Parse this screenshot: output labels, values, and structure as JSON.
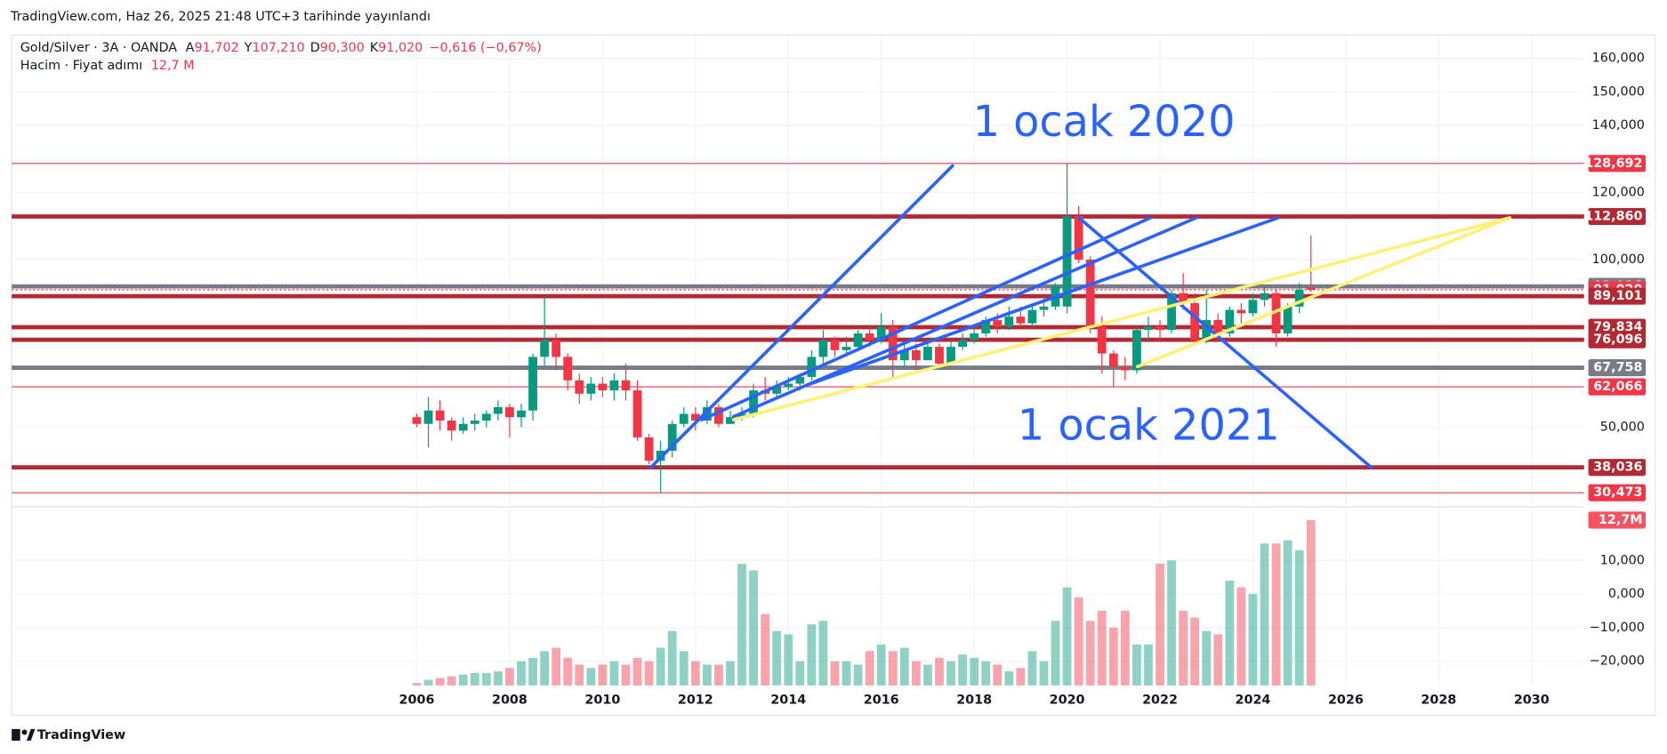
{
  "header": {
    "published": "TradingView.com, Haz 26, 2025 21:48 UTC+3 tarihinde yayınlandı",
    "symbol": "Gold/Silver · 3A · OANDA",
    "ohlc": [
      {
        "label": "A",
        "value": "91,702"
      },
      {
        "label": "Y",
        "value": "107,210"
      },
      {
        "label": "D",
        "value": "90,300"
      },
      {
        "label": "K",
        "value": "91,020"
      }
    ],
    "change": "−0,616 (−0,67%)",
    "volume_label": "Hacim · Fiyat adımı",
    "volume_value": "12,7 M"
  },
  "footer": {
    "brand": "TradingView"
  },
  "chart_data": {
    "type": "candlestick",
    "up_color": "#089981",
    "down_color": "#f23645",
    "x": [
      2006,
      2006.25,
      2006.5,
      2006.75,
      2007,
      2007.25,
      2007.5,
      2007.75,
      2008,
      2008.25,
      2008.5,
      2008.75,
      2009,
      2009.25,
      2009.5,
      2009.75,
      2010,
      2010.25,
      2010.5,
      2010.75,
      2011,
      2011.25,
      2011.5,
      2011.75,
      2012,
      2012.25,
      2012.5,
      2012.75,
      2013,
      2013.25,
      2013.5,
      2013.75,
      2014,
      2014.25,
      2014.5,
      2014.75,
      2015,
      2015.25,
      2015.5,
      2015.75,
      2016,
      2016.25,
      2016.5,
      2016.75,
      2017,
      2017.25,
      2017.5,
      2017.75,
      2018,
      2018.25,
      2018.5,
      2018.75,
      2019,
      2019.25,
      2019.5,
      2019.75,
      2020,
      2020.25,
      2020.5,
      2020.75,
      2021,
      2021.25,
      2021.5,
      2021.75,
      2022,
      2022.25,
      2022.5,
      2022.75,
      2023,
      2023.25,
      2023.5,
      2023.75,
      2024,
      2024.25,
      2024.5,
      2024.75,
      2025,
      2025.25
    ],
    "open": [
      53,
      51,
      55,
      52,
      49,
      51,
      52,
      54,
      56,
      53,
      55,
      71,
      76,
      71,
      64,
      60,
      63,
      61,
      64,
      61,
      47,
      40,
      43,
      51,
      54,
      52,
      56,
      51,
      53,
      54,
      61,
      60,
      62,
      63,
      65,
      71,
      76,
      73,
      74,
      78,
      76,
      80,
      70,
      73,
      70,
      74,
      69,
      74,
      76,
      78,
      82,
      80,
      83,
      81,
      85,
      86,
      86,
      113,
      100,
      80,
      72,
      68,
      67,
      79,
      80,
      79,
      90,
      87,
      76,
      82,
      78,
      85,
      84,
      88,
      90,
      78,
      86,
      91.702
    ],
    "high": [
      54,
      59,
      58,
      53,
      53,
      54,
      55,
      58,
      57,
      57,
      72,
      89,
      78,
      72,
      66,
      65,
      65,
      66,
      69,
      64,
      48,
      46,
      52,
      56,
      56,
      58,
      57,
      55,
      56,
      63,
      65,
      64,
      65,
      66,
      73,
      79,
      77,
      77,
      79,
      80,
      84,
      82,
      75,
      75,
      76,
      75,
      76,
      78,
      80,
      83,
      84,
      86,
      86,
      87,
      89,
      93,
      128.692,
      116,
      101,
      83,
      73,
      71,
      80,
      83,
      82,
      91,
      96,
      90,
      91,
      84,
      86,
      87,
      90,
      92,
      91,
      87,
      93,
      107.21
    ],
    "low": [
      50,
      44,
      49,
      46,
      48,
      49,
      50,
      52,
      47,
      50,
      52,
      68,
      67,
      61,
      57,
      58,
      59,
      58,
      58,
      46,
      39,
      30.473,
      41,
      50,
      49,
      51,
      50,
      51,
      52,
      53,
      58,
      59,
      61,
      61,
      64,
      69,
      71,
      72,
      73,
      74,
      75,
      65,
      68,
      67,
      70,
      68,
      69,
      73,
      75,
      77,
      78,
      79,
      80,
      80,
      83,
      85,
      84,
      99,
      78,
      66,
      62,
      64,
      66,
      76,
      76,
      78,
      85,
      75,
      75,
      76,
      77,
      81,
      83,
      86,
      74,
      77,
      84,
      90.3
    ],
    "close": [
      51,
      55,
      52,
      49,
      51,
      52,
      54,
      56,
      53,
      55,
      71,
      76,
      71,
      64,
      60,
      63,
      61,
      64,
      61,
      47,
      40,
      43,
      51,
      54,
      52,
      56,
      51,
      53,
      54,
      61,
      60,
      62,
      63,
      65,
      71,
      76,
      73,
      74,
      78,
      76,
      80,
      70,
      73,
      70,
      74,
      69,
      74,
      76,
      78,
      82,
      80,
      83,
      81,
      85,
      86,
      92,
      113,
      100,
      80,
      72,
      68,
      67,
      79,
      80,
      79,
      90,
      87,
      76,
      82,
      78,
      85,
      84,
      88,
      90,
      78,
      86,
      91,
      91.02
    ],
    "xlim": [
      1997.28,
      2031.13
    ],
    "xticks": [
      2006,
      2008,
      2010,
      2012,
      2014,
      2016,
      2018,
      2020,
      2022,
      2024,
      2026,
      2028,
      2030
    ],
    "ylim": [
      26.88,
      166.97
    ],
    "yticks": [
      {
        "value": 160,
        "label": "160,000"
      },
      {
        "value": 150,
        "label": "150,000"
      },
      {
        "value": 140,
        "label": "140,000"
      },
      {
        "value": 120,
        "label": "120,000"
      },
      {
        "value": 100,
        "label": "100,000"
      },
      {
        "value": 50,
        "label": "50,000"
      }
    ],
    "levels": [
      {
        "value": 128.692,
        "label": "128,692",
        "color": "#f23645",
        "width": 1
      },
      {
        "value": 112.86,
        "label": "112,860",
        "color": "#b22833",
        "width": 4
      },
      {
        "value": 92.016,
        "label": "92,016",
        "color": "#787b86",
        "width": 4
      },
      {
        "value": 91.02,
        "label": "91,020",
        "color": "#f23645",
        "width": 1
      },
      {
        "value": 89.101,
        "label": "89,101",
        "color": "#b22833",
        "width": 4
      },
      {
        "value": 79.834,
        "label": "79,834",
        "color": "#b22833",
        "width": 4
      },
      {
        "value": 76.096,
        "label": "76,096",
        "color": "#b22833",
        "width": 4
      },
      {
        "value": 67.758,
        "label": "67,758",
        "color": "#787b86",
        "width": 4
      },
      {
        "value": 62.066,
        "label": "62,066",
        "color": "#f23645",
        "width": 1
      },
      {
        "value": 38.036,
        "label": "38,036",
        "color": "#b22833",
        "width": 4
      },
      {
        "value": 30.473,
        "label": "30,473",
        "color": "#f23645",
        "width": 1
      }
    ],
    "annotations": [
      "1 ocak 2020",
      "1 ocak 2021"
    ],
    "volume": {
      "values": [
        -26.5,
        -25.5,
        -25,
        -24.5,
        -24,
        -23.5,
        -23.5,
        -23,
        -22,
        -20,
        -19,
        -17,
        -16,
        -19,
        -21,
        -22,
        -21,
        -20,
        -21,
        -19,
        -20,
        -16,
        -11,
        -17,
        -20,
        -21,
        -21,
        -20,
        9,
        7,
        -6,
        -11,
        -12,
        -20,
        -9,
        -8,
        -20,
        -20,
        -21,
        -17,
        -15,
        -17,
        -16,
        -20,
        -21,
        -19,
        -20,
        -18,
        -19,
        -20,
        -21,
        -23,
        -22,
        -17,
        -20,
        -8,
        2,
        -1,
        -8,
        -5,
        -10,
        -5,
        -15,
        -15,
        9,
        10,
        -5,
        -7,
        -11,
        -12,
        4,
        2,
        0,
        15,
        15,
        16,
        13,
        22
      ],
      "ylim": [
        -27.2,
        25.6
      ],
      "yticks": [
        {
          "value": 10,
          "label": "10,000"
        },
        {
          "value": 0,
          "label": "0,000"
        },
        {
          "value": -10,
          "label": "−10,000"
        },
        {
          "value": -20,
          "label": "−20,000"
        }
      ],
      "last_label": "12,7M"
    }
  }
}
